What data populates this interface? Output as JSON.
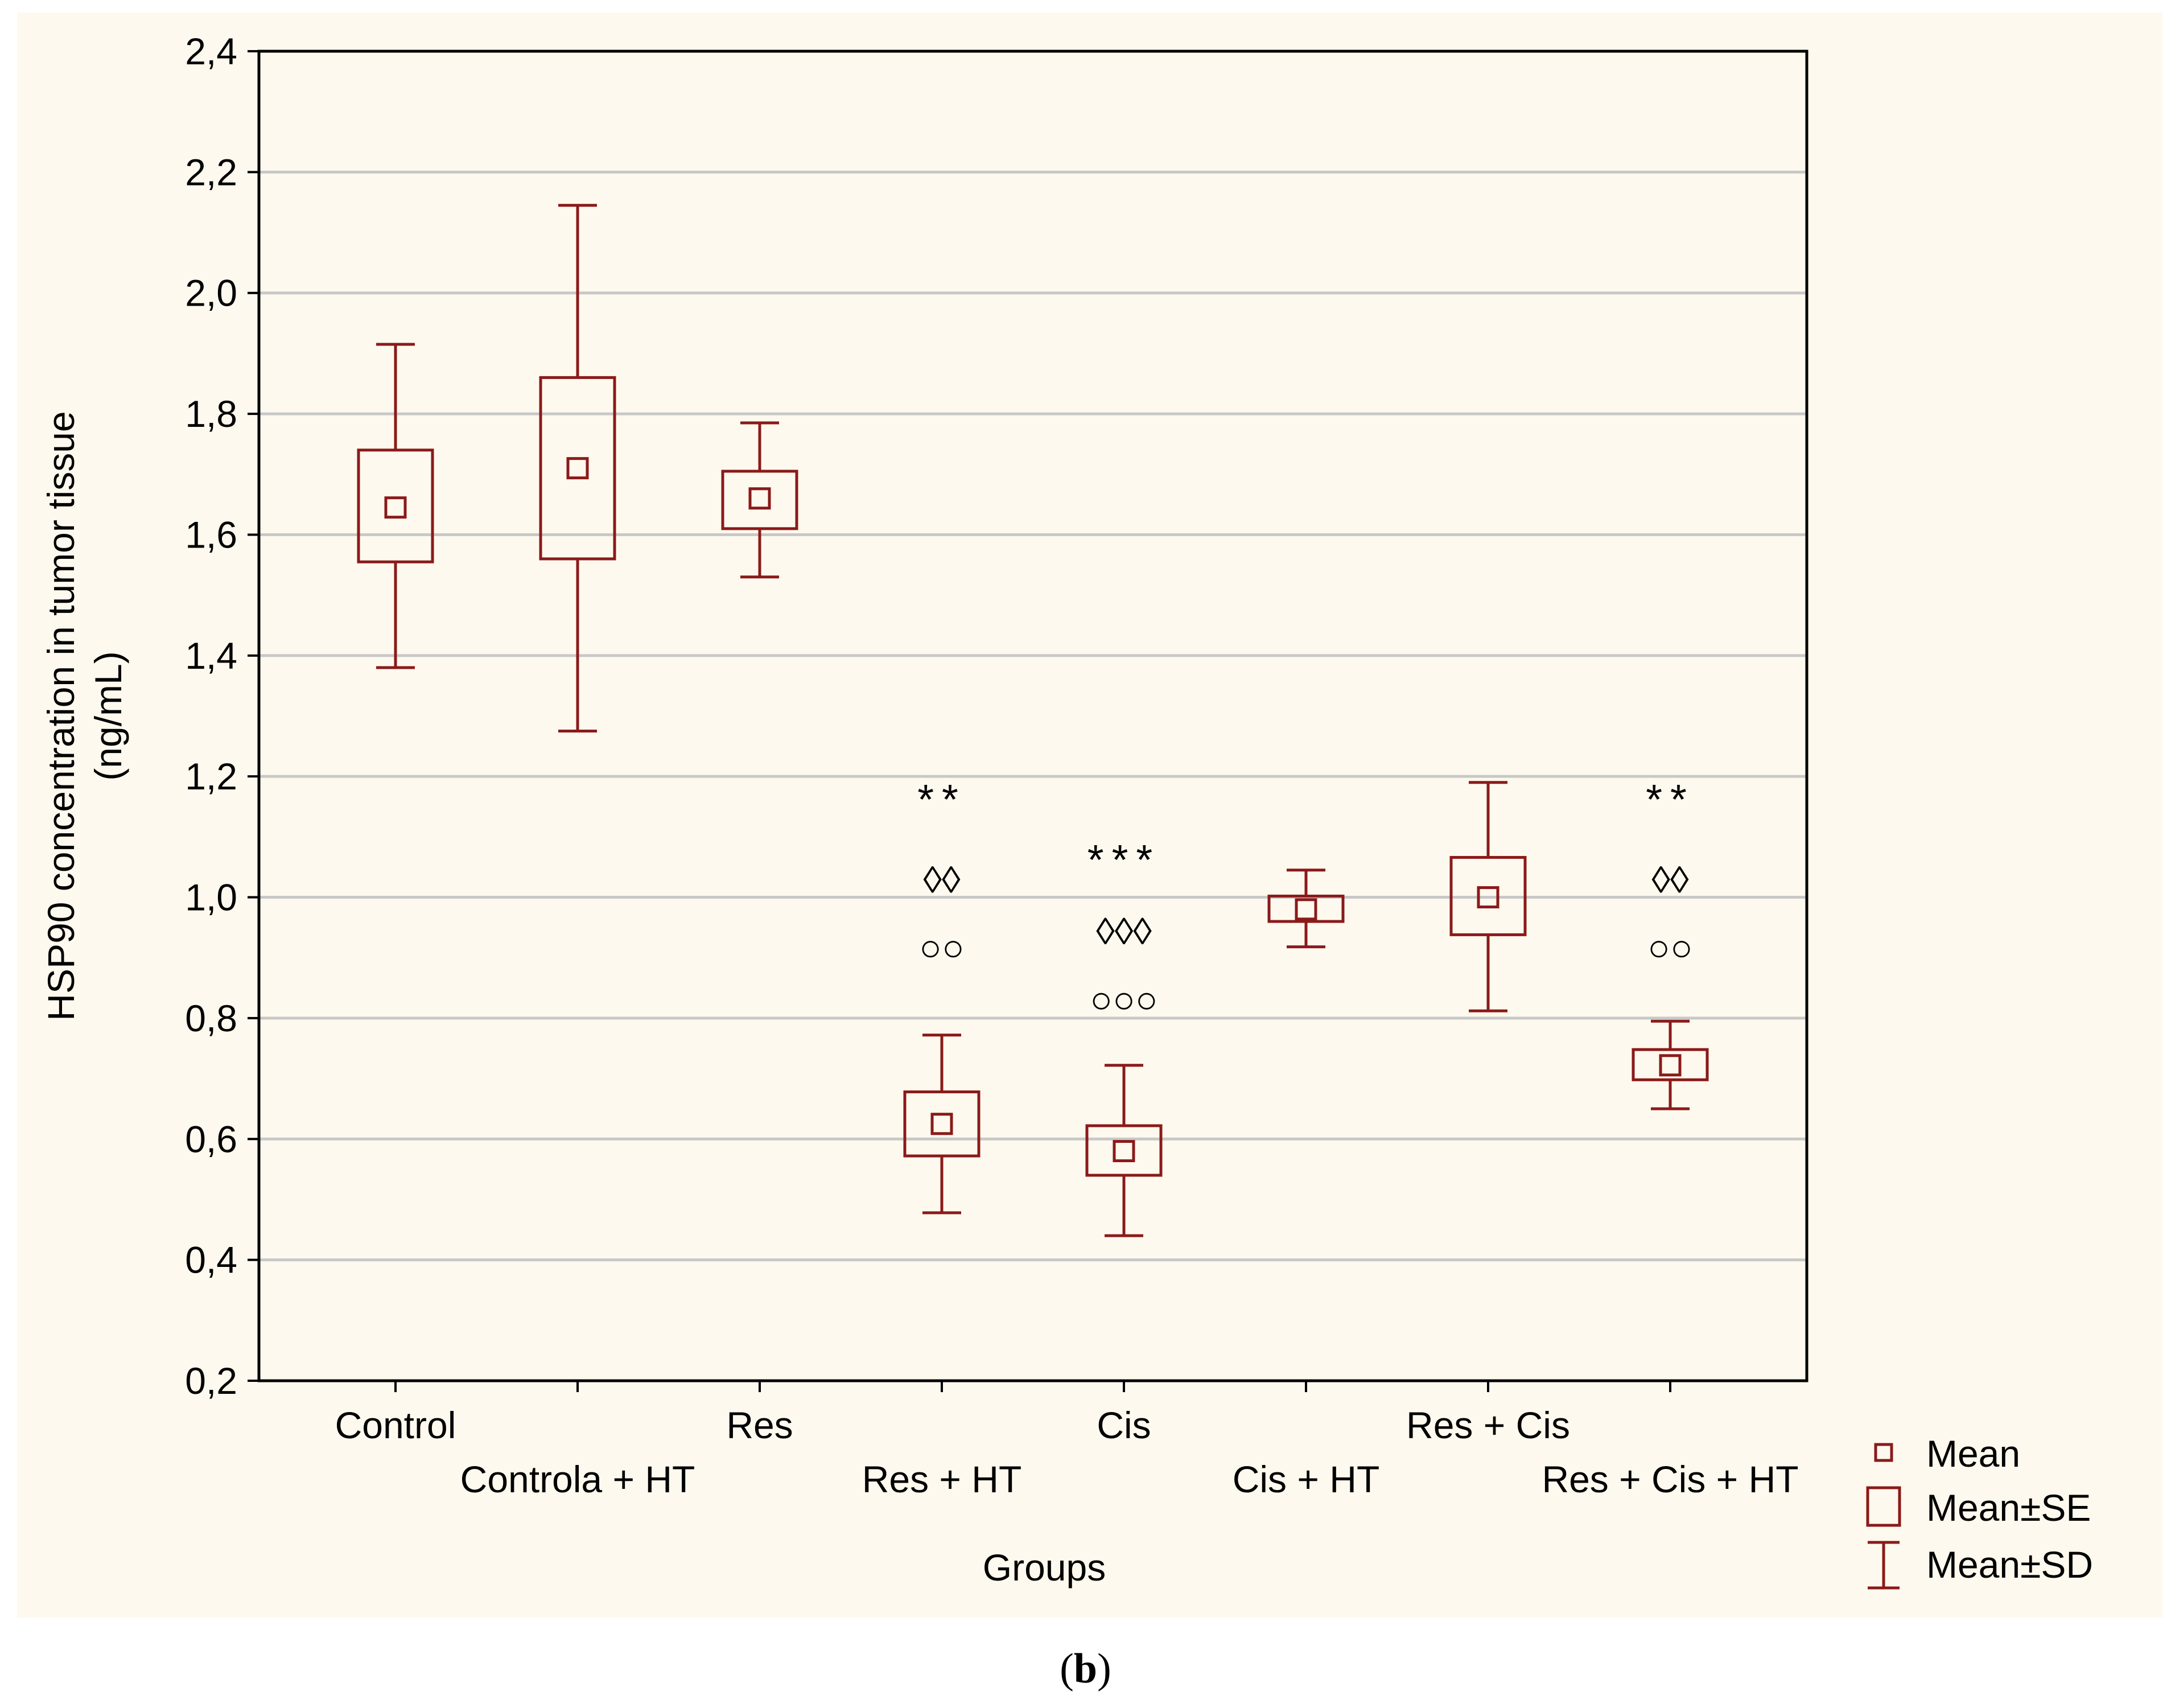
{
  "chart_data": {
    "type": "box",
    "title": "",
    "xlabel": "Groups",
    "ylabel_line1": "HSP90 concentration in tumor tissue",
    "ylabel_line2": "(ng/mL)",
    "ylim": [
      0.2,
      2.4
    ],
    "yticks": [
      0.2,
      0.4,
      0.6,
      0.8,
      1.0,
      1.2,
      1.4,
      1.6,
      1.8,
      2.0,
      2.2,
      2.4
    ],
    "ytick_labels": [
      "0,2",
      "0,4",
      "0,6",
      "0,8",
      "1,0",
      "1,2",
      "1,4",
      "1,6",
      "1,8",
      "2,0",
      "2,2",
      "2,4"
    ],
    "grid": true,
    "color": "#8b1a1a",
    "groups": [
      {
        "name": "Control",
        "mean": 1.645,
        "se_low": 1.555,
        "se_high": 1.74,
        "sd_low": 1.38,
        "sd_high": 1.915,
        "stars": "",
        "diamonds": "",
        "circles": ""
      },
      {
        "name": "Controla + HT",
        "mean": 1.71,
        "se_low": 1.56,
        "se_high": 1.86,
        "sd_low": 1.275,
        "sd_high": 2.145,
        "stars": "",
        "diamonds": "",
        "circles": ""
      },
      {
        "name": "Res",
        "mean": 1.66,
        "se_low": 1.61,
        "se_high": 1.705,
        "sd_low": 1.53,
        "sd_high": 1.785,
        "stars": "",
        "diamonds": "",
        "circles": ""
      },
      {
        "name": "Res + HT",
        "mean": 0.625,
        "se_low": 0.572,
        "se_high": 0.678,
        "sd_low": 0.478,
        "sd_high": 0.772,
        "stars": "**",
        "diamonds": "◊◊",
        "circles": "○○"
      },
      {
        "name": "Cis",
        "mean": 0.58,
        "se_low": 0.54,
        "se_high": 0.622,
        "sd_low": 0.44,
        "sd_high": 0.722,
        "stars": "***",
        "diamonds": "◊◊◊",
        "circles": "○○○"
      },
      {
        "name": "Cis + HT",
        "mean": 0.98,
        "se_low": 0.96,
        "se_high": 1.002,
        "sd_low": 0.918,
        "sd_high": 1.045,
        "stars": "",
        "diamonds": "",
        "circles": ""
      },
      {
        "name": "Res + Cis",
        "mean": 1.0,
        "se_low": 0.938,
        "se_high": 1.066,
        "sd_low": 0.812,
        "sd_high": 1.19,
        "stars": "",
        "diamonds": "",
        "circles": ""
      },
      {
        "name": "Res + Cis + HT",
        "mean": 0.722,
        "se_low": 0.698,
        "se_high": 0.748,
        "sd_low": 0.65,
        "sd_high": 0.795,
        "stars": "**",
        "diamonds": "◊◊",
        "circles": "○○"
      }
    ],
    "annotation_y": {
      "stars": 1.17,
      "diamonds": 1.03,
      "circles": 0.918
    },
    "annotation_y_cis": {
      "stars": 1.07,
      "diamonds": 0.945,
      "circles": 0.832
    },
    "legend": {
      "position": "bottom-right",
      "entries": [
        "Mean",
        "Mean±SE",
        "Mean±SD"
      ]
    }
  },
  "caption": {
    "prefix": "(",
    "label": "b",
    "suffix": ")"
  }
}
